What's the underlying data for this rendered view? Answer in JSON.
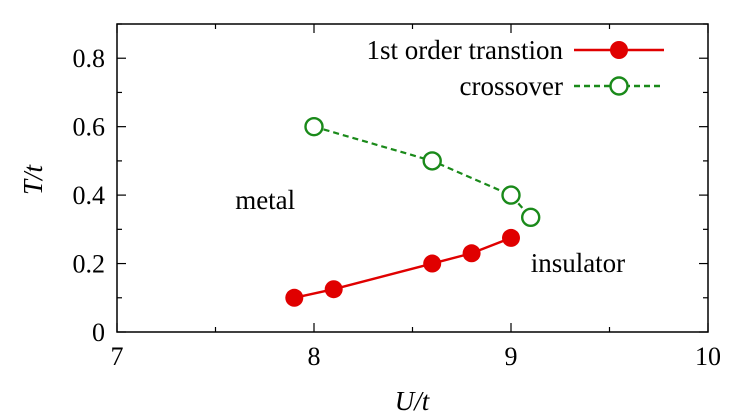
{
  "chart_data": {
    "type": "line",
    "xlabel": "U/t",
    "ylabel": "T/t",
    "xlim": [
      7,
      10
    ],
    "ylim": [
      0,
      0.9
    ],
    "x_ticks": [
      7,
      8,
      9,
      10
    ],
    "y_ticks": [
      0,
      0.2,
      0.4,
      0.6,
      0.8
    ],
    "x_tick_labels": [
      "7",
      "8",
      "9",
      "10"
    ],
    "y_tick_labels": [
      "0",
      "0.2",
      "0.4",
      "0.6",
      "0.8"
    ],
    "grid": false,
    "legend_position": "top-right",
    "series": [
      {
        "name": "1st order transtion",
        "color": "#e00000",
        "line_style": "solid",
        "marker": "filled-circle",
        "x": [
          7.9,
          8.1,
          8.6,
          8.8,
          9.0
        ],
        "y": [
          0.1,
          0.125,
          0.2,
          0.23,
          0.275
        ]
      },
      {
        "name": "crossover",
        "color": "#1a8a1a",
        "line_style": "dashed",
        "marker": "open-circle",
        "x": [
          8.0,
          8.6,
          9.0,
          9.1
        ],
        "y": [
          0.6,
          0.5,
          0.4,
          0.335
        ]
      }
    ],
    "annotations": [
      {
        "text": "metal",
        "x": 7.6,
        "y": 0.36
      },
      {
        "text": "insulator",
        "x": 9.1,
        "y": 0.175
      }
    ]
  }
}
